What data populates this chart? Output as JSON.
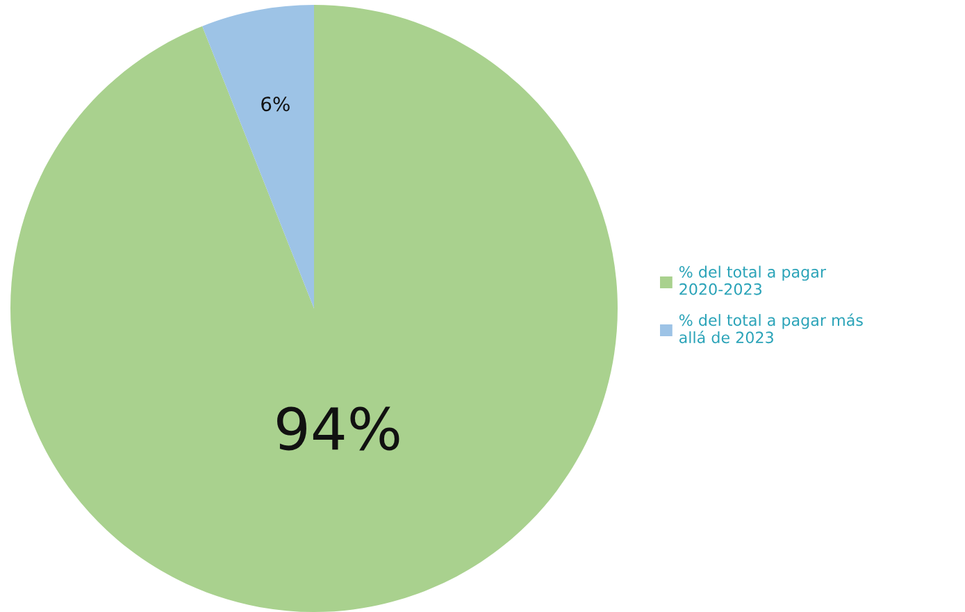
{
  "chart_data": {
    "type": "pie",
    "categories": [
      "% del total a pagar 2020-2023",
      "% del total a pagar más allá de 2023"
    ],
    "values": [
      94,
      6
    ],
    "colors": [
      "#a9d18e",
      "#9dc3e6"
    ],
    "value_labels": [
      "94%",
      "6%"
    ],
    "legend": "right"
  }
}
